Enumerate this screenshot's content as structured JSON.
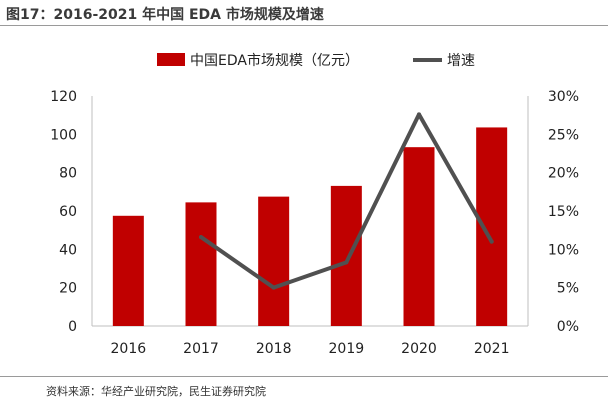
{
  "figure": {
    "title": "图17：2016-2021 年中国 EDA 市场规模及增速",
    "source": "资料来源：华经产业研究院，民生证券研究院"
  },
  "chart_data": {
    "type": "bar+line",
    "categories": [
      "2016",
      "2017",
      "2018",
      "2019",
      "2020",
      "2021"
    ],
    "series": [
      {
        "name": "中国EDA市场规模（亿元）",
        "type": "bar",
        "axis": "left",
        "color": "#c00000",
        "values": [
          57.5,
          64.5,
          67.5,
          73.1,
          93.3,
          103.6
        ]
      },
      {
        "name": "增速",
        "type": "line",
        "axis": "right",
        "color": "#505050",
        "values": [
          null,
          11.6,
          5.0,
          8.3,
          27.6,
          11.0
        ]
      }
    ],
    "y_left": {
      "min": 0,
      "max": 120,
      "ticks": [
        "0",
        "20",
        "40",
        "60",
        "80",
        "100",
        "120"
      ]
    },
    "y_right": {
      "min": 0,
      "max": 30,
      "ticks": [
        "0%",
        "5%",
        "10%",
        "15%",
        "20%",
        "25%",
        "30%"
      ]
    },
    "legend_position": "top",
    "grid": false
  }
}
